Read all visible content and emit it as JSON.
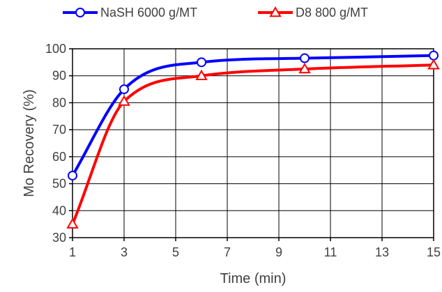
{
  "chart_data": {
    "type": "line",
    "xlabel": "Time (min)",
    "ylabel": "Mo Recovery (%)",
    "xlim": [
      1,
      15
    ],
    "ylim": [
      30,
      100
    ],
    "xticks": [
      1,
      3,
      5,
      7,
      9,
      11,
      13,
      15
    ],
    "yticks": [
      30,
      40,
      50,
      60,
      70,
      80,
      90,
      100
    ],
    "grid": true,
    "legend_position": "top",
    "series": [
      {
        "name": "NaSH 6000 g/MT",
        "color": "#0000ff",
        "marker": "circle",
        "x": [
          1,
          3,
          6,
          10,
          15
        ],
        "y": [
          53,
          85,
          95,
          96.5,
          97.5
        ]
      },
      {
        "name": "D8 800 g/MT",
        "color": "#ff0000",
        "marker": "triangle",
        "x": [
          1,
          3,
          6,
          10,
          15
        ],
        "y": [
          35,
          80.5,
          90,
          92.5,
          94
        ]
      }
    ]
  }
}
